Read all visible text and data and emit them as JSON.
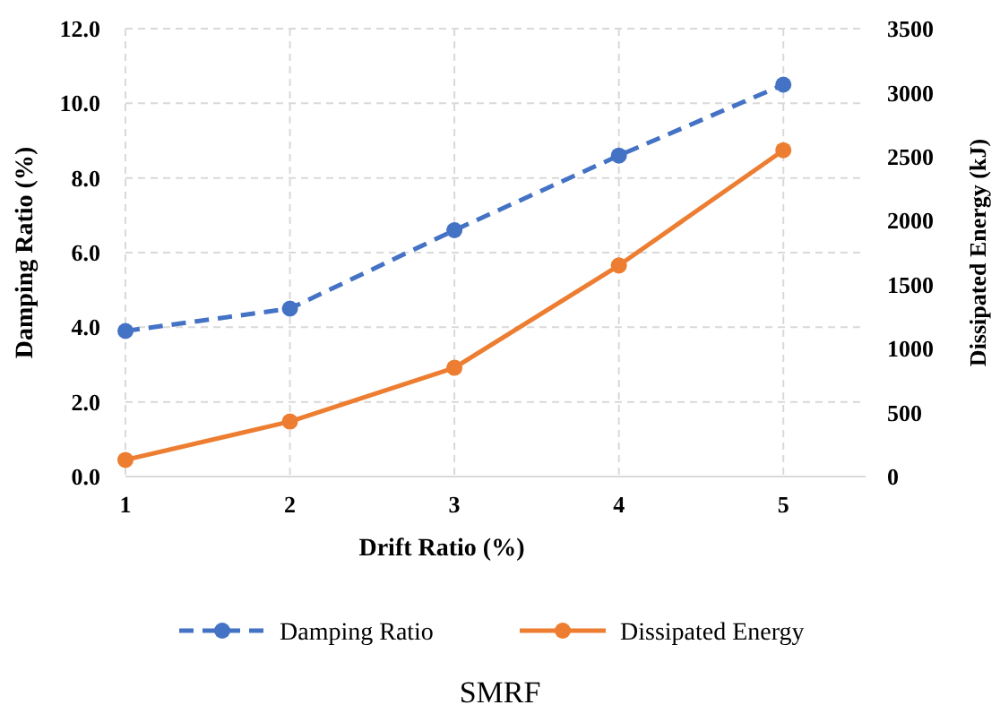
{
  "chart_data": {
    "type": "line",
    "title": "SMRF",
    "xlabel": "Drift Ratio (%)",
    "ylabel": "Damping Ratio (%)",
    "y2label": "Dissipated Energy (kJ)",
    "x": [
      1,
      2,
      3,
      4,
      5
    ],
    "xlim": [
      1,
      5.5
    ],
    "xticks": [
      1,
      2,
      3,
      4,
      5
    ],
    "ylim": [
      0,
      12
    ],
    "yticks": [
      {
        "value": 0,
        "label": "0.0"
      },
      {
        "value": 2,
        "label": "2.0"
      },
      {
        "value": 4,
        "label": "4.0"
      },
      {
        "value": 6,
        "label": "6.0"
      },
      {
        "value": 8,
        "label": "8.0"
      },
      {
        "value": 10,
        "label": "10.0"
      },
      {
        "value": 12,
        "label": "12.0"
      }
    ],
    "y2lim": [
      0,
      3500
    ],
    "y2ticks": [
      0,
      500,
      1000,
      1500,
      2000,
      2500,
      3000,
      3500
    ],
    "grid": true,
    "legend": "bottom",
    "marker": "circle",
    "series": [
      {
        "name": "Damping Ratio",
        "color": "#4472c4",
        "values": [
          3.9,
          4.5,
          6.6,
          8.6,
          10.5
        ],
        "line_style": "dashed"
      },
      {
        "name": "Dissipated Energy",
        "color": "#ed7d31",
        "values": [
          130,
          430,
          850,
          1650,
          2550
        ],
        "axis": "y2",
        "line_style": "solid"
      }
    ]
  }
}
